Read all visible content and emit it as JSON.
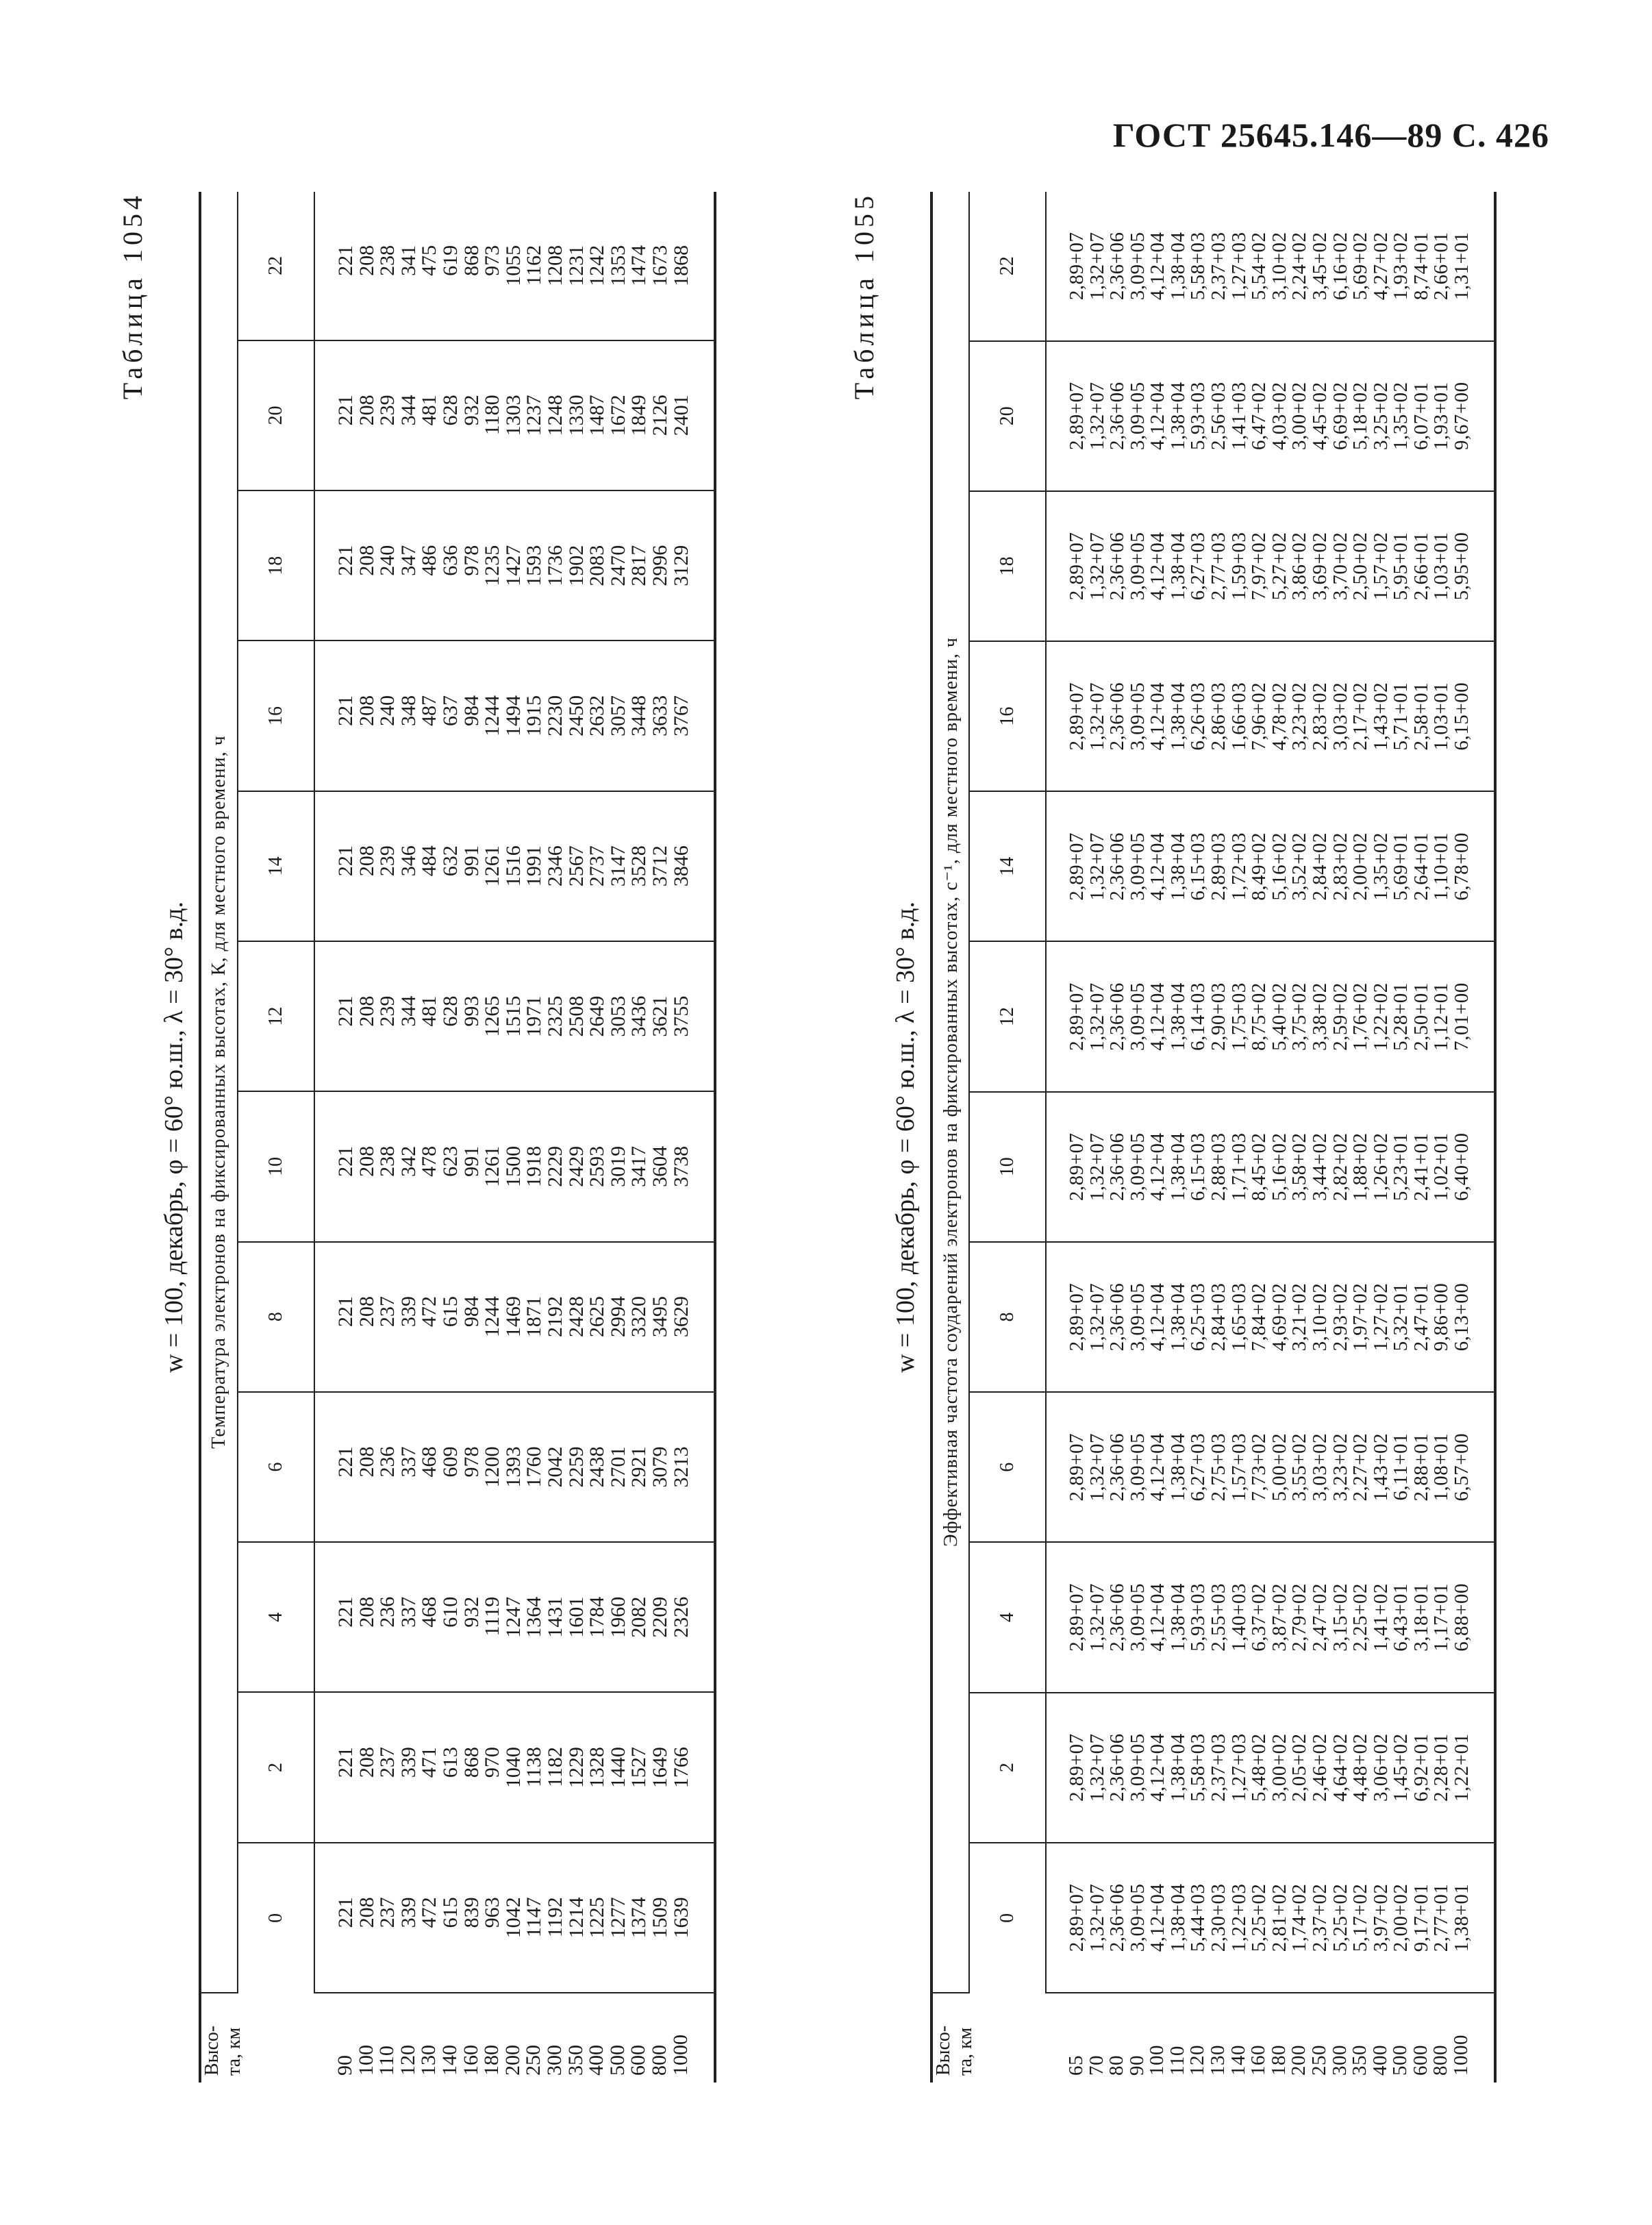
{
  "page_header": "ГОСТ 25645.146—89 С. 426",
  "hours": [
    "0",
    "2",
    "4",
    "6",
    "8",
    "10",
    "12",
    "14",
    "16",
    "18",
    "20",
    "22"
  ],
  "altitude_header": "Высо-\nта, км",
  "table1": {
    "label": "Таблица 1054",
    "params": "w = 100, декабрь, φ = 60° ю.ш., λ = 30° в.д.",
    "quantity_header": "Температура электронов на фиксированных высотах, К, для местного времени, ч",
    "altitudes": [
      "90",
      "100",
      "110",
      "120",
      "130",
      "140",
      "160",
      "180",
      "200",
      "250",
      "300",
      "350",
      "400",
      "500",
      "600",
      "800",
      "1000"
    ],
    "columns": [
      [
        "221",
        "208",
        "237",
        "339",
        "472",
        "615",
        "839",
        "963",
        "1042",
        "1147",
        "1192",
        "1214",
        "1225",
        "1277",
        "1374",
        "1509",
        "1639"
      ],
      [
        "221",
        "208",
        "237",
        "339",
        "471",
        "613",
        "868",
        "970",
        "1040",
        "1138",
        "1182",
        "1229",
        "1328",
        "1440",
        "1527",
        "1649",
        "1766"
      ],
      [
        "221",
        "208",
        "236",
        "337",
        "468",
        "610",
        "932",
        "1119",
        "1247",
        "1364",
        "1431",
        "1601",
        "1784",
        "1960",
        "2082",
        "2209",
        "2326"
      ],
      [
        "221",
        "208",
        "236",
        "337",
        "468",
        "609",
        "978",
        "1200",
        "1393",
        "1760",
        "2042",
        "2259",
        "2438",
        "2701",
        "2921",
        "3079",
        "3213"
      ],
      [
        "221",
        "208",
        "237",
        "339",
        "472",
        "615",
        "984",
        "1244",
        "1469",
        "1871",
        "2192",
        "2428",
        "2625",
        "2994",
        "3320",
        "3495",
        "3629"
      ],
      [
        "221",
        "208",
        "238",
        "342",
        "478",
        "623",
        "991",
        "1261",
        "1500",
        "1918",
        "2229",
        "2429",
        "2593",
        "3019",
        "3417",
        "3604",
        "3738"
      ],
      [
        "221",
        "208",
        "239",
        "344",
        "481",
        "628",
        "993",
        "1265",
        "1515",
        "1971",
        "2325",
        "2508",
        "2649",
        "3053",
        "3436",
        "3621",
        "3755"
      ],
      [
        "221",
        "208",
        "239",
        "346",
        "484",
        "632",
        "991",
        "1261",
        "1516",
        "1991",
        "2346",
        "2567",
        "2737",
        "3147",
        "3528",
        "3712",
        "3846"
      ],
      [
        "221",
        "208",
        "240",
        "348",
        "487",
        "637",
        "984",
        "1244",
        "1494",
        "1915",
        "2230",
        "2450",
        "2632",
        "3057",
        "3448",
        "3633",
        "3767"
      ],
      [
        "221",
        "208",
        "240",
        "347",
        "486",
        "636",
        "978",
        "1235",
        "1427",
        "1593",
        "1736",
        "1902",
        "2083",
        "2470",
        "2817",
        "2996",
        "3129"
      ],
      [
        "221",
        "208",
        "239",
        "344",
        "481",
        "628",
        "932",
        "1180",
        "1303",
        "1237",
        "1248",
        "1330",
        "1487",
        "1672",
        "1849",
        "2126",
        "2401"
      ],
      [
        "221",
        "208",
        "238",
        "341",
        "475",
        "619",
        "868",
        "973",
        "1055",
        "1162",
        "1208",
        "1231",
        "1242",
        "1353",
        "1474",
        "1673",
        "1868"
      ]
    ]
  },
  "table2": {
    "label": "Таблица 1055",
    "params": "w = 100, декабрь, φ = 60° ю.ш., λ = 30° в.д.",
    "quantity_header": "Эффективная частота соударений электронов на фиксированных высотах, с⁻¹, для местного времени, ч",
    "altitudes": [
      "65",
      "70",
      "80",
      "90",
      "100",
      "110",
      "120",
      "130",
      "140",
      "160",
      "180",
      "200",
      "250",
      "300",
      "350",
      "400",
      "500",
      "600",
      "800",
      "1000"
    ],
    "columns": [
      [
        "2,89+07",
        "1,32+07",
        "2,36+06",
        "3,09+05",
        "4,12+04",
        "1,38+04",
        "5,44+03",
        "2,30+03",
        "1,22+03",
        "5,25+02",
        "2,81+02",
        "1,74+02",
        "2,37+02",
        "5,25+02",
        "5,17+02",
        "3,97+02",
        "2,00+02",
        "9,17+01",
        "2,77+01",
        "1,38+01"
      ],
      [
        "2,89+07",
        "1,32+07",
        "2,36+06",
        "3,09+05",
        "4,12+04",
        "1,38+04",
        "5,58+03",
        "2,37+03",
        "1,27+03",
        "5,48+02",
        "3,00+02",
        "2,05+02",
        "2,46+02",
        "4,64+02",
        "4,48+02",
        "3,06+02",
        "1,45+02",
        "6,92+01",
        "2,28+01",
        "1,22+01"
      ],
      [
        "2,89+07",
        "1,32+07",
        "2,36+06",
        "3,09+05",
        "4,12+04",
        "1,38+04",
        "5,93+03",
        "2,55+03",
        "1,40+03",
        "6,37+02",
        "3,87+02",
        "2,79+02",
        "2,47+02",
        "3,15+02",
        "2,25+02",
        "1,41+02",
        "6,43+01",
        "3,18+01",
        "1,17+01",
        "6,88+00"
      ],
      [
        "2,89+07",
        "1,32+07",
        "2,36+06",
        "3,09+05",
        "4,12+04",
        "1,38+04",
        "6,27+03",
        "2,75+03",
        "1,57+03",
        "7,73+02",
        "5,00+02",
        "3,55+02",
        "3,03+02",
        "3,23+02",
        "2,27+02",
        "1,43+02",
        "6,11+01",
        "2,88+01",
        "1,08+01",
        "6,57+00"
      ],
      [
        "2,89+07",
        "1,32+07",
        "2,36+06",
        "3,09+05",
        "4,12+04",
        "1,38+04",
        "6,25+03",
        "2,84+03",
        "1,65+03",
        "7,84+02",
        "4,69+02",
        "3,21+02",
        "3,10+02",
        "2,93+02",
        "1,97+02",
        "1,27+02",
        "5,32+01",
        "2,47+01",
        "9,86+00",
        "6,13+00"
      ],
      [
        "2,89+07",
        "1,32+07",
        "2,36+06",
        "3,09+05",
        "4,12+04",
        "1,38+04",
        "6,15+03",
        "2,88+03",
        "1,71+03",
        "8,45+02",
        "5,16+02",
        "3,58+02",
        "3,44+02",
        "2,82+02",
        "1,88+02",
        "1,26+02",
        "5,23+01",
        "2,41+01",
        "1,02+01",
        "6,40+00"
      ],
      [
        "2,89+07",
        "1,32+07",
        "2,36+06",
        "3,09+05",
        "4,12+04",
        "1,38+04",
        "6,14+03",
        "2,90+03",
        "1,75+03",
        "8,75+02",
        "5,40+02",
        "3,75+02",
        "3,38+02",
        "2,59+02",
        "1,76+02",
        "1,22+02",
        "5,28+01",
        "2,50+01",
        "1,12+01",
        "7,01+00"
      ],
      [
        "2,89+07",
        "1,32+07",
        "2,36+06",
        "3,09+05",
        "4,12+04",
        "1,38+04",
        "6,15+03",
        "2,89+03",
        "1,72+03",
        "8,49+02",
        "5,16+02",
        "3,52+02",
        "2,84+02",
        "2,83+02",
        "2,00+02",
        "1,35+02",
        "5,69+01",
        "2,64+01",
        "1,10+01",
        "6,78+00"
      ],
      [
        "2,89+07",
        "1,32+07",
        "2,36+06",
        "3,09+05",
        "4,12+04",
        "1,38+04",
        "6,26+03",
        "2,86+03",
        "1,66+03",
        "7,96+02",
        "4,78+02",
        "3,23+02",
        "2,83+02",
        "3,03+02",
        "2,17+02",
        "1,43+02",
        "5,71+01",
        "2,58+01",
        "1,03+01",
        "6,15+00"
      ],
      [
        "2,89+07",
        "1,32+07",
        "2,36+06",
        "3,09+05",
        "4,12+04",
        "1,38+04",
        "6,27+03",
        "2,77+03",
        "1,59+03",
        "7,97+02",
        "5,27+02",
        "3,86+02",
        "3,69+02",
        "3,70+02",
        "2,50+02",
        "1,57+02",
        "5,95+01",
        "2,66+01",
        "1,03+01",
        "5,95+00"
      ],
      [
        "2,89+07",
        "1,32+07",
        "2,36+06",
        "3,09+05",
        "4,12+04",
        "1,38+04",
        "5,93+03",
        "2,56+03",
        "1,41+03",
        "6,47+02",
        "4,03+02",
        "3,00+02",
        "4,45+02",
        "6,69+02",
        "5,18+02",
        "3,25+02",
        "1,35+02",
        "6,07+01",
        "1,93+01",
        "9,67+00"
      ],
      [
        "2,89+07",
        "1,32+07",
        "2,36+06",
        "3,09+05",
        "4,12+04",
        "1,38+04",
        "5,58+03",
        "2,37+03",
        "1,27+03",
        "5,54+02",
        "3,10+02",
        "2,24+02",
        "3,45+02",
        "6,16+02",
        "5,69+02",
        "4,27+02",
        "1,93+02",
        "8,74+01",
        "2,66+01",
        "1,31+01"
      ]
    ]
  }
}
